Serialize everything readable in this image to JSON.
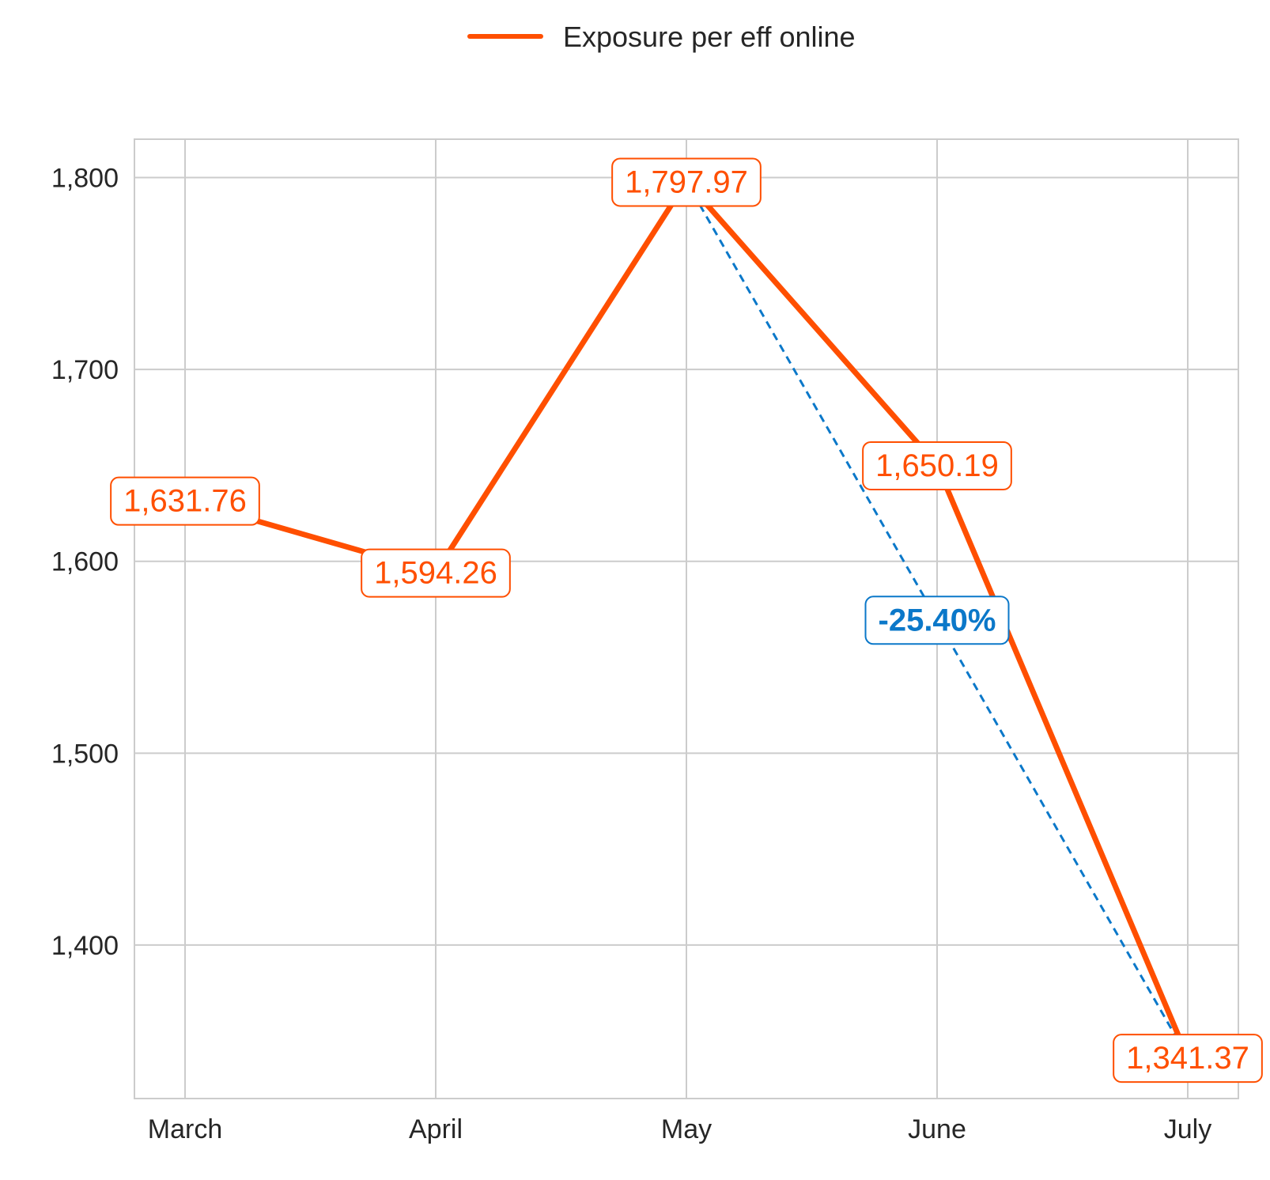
{
  "chart_data": {
    "type": "line",
    "categories": [
      "March",
      "April",
      "May",
      "June",
      "July"
    ],
    "series": [
      {
        "name": "Exposure per eff online",
        "values": [
          1631.76,
          1594.26,
          1797.97,
          1650.19,
          1341.37
        ],
        "labels": [
          "1,631.76",
          "1,594.26",
          "1,797.97",
          "1,650.19",
          "1,341.37"
        ],
        "color": "#FF4F00"
      }
    ],
    "yticks": [
      1400,
      1500,
      1600,
      1700,
      1800
    ],
    "ytick_labels": [
      "1,400",
      "1,500",
      "1,600",
      "1,700",
      "1,800"
    ],
    "ylim": [
      1320,
      1820
    ],
    "grid": true,
    "legend": "top-center",
    "annotation": {
      "from_category": "May",
      "to_category": "July",
      "text": "-25.40%",
      "color": "#0B78C9"
    },
    "title": "",
    "xlabel": "",
    "ylabel": ""
  }
}
